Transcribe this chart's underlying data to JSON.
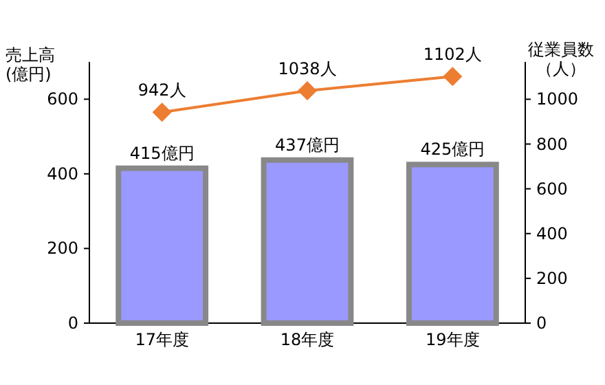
{
  "chart_data": {
    "type": "bar",
    "categories": [
      "17年度",
      "18年度",
      "19年度"
    ],
    "ylabel": "売上高(億円)",
    "y2label": "従業員数（人）",
    "ylim": [
      0,
      700
    ],
    "yticks": [
      0,
      200,
      400,
      600
    ],
    "y2lim": [
      0,
      1167
    ],
    "y2ticks": [
      0,
      200,
      400,
      600,
      800,
      1000
    ],
    "grid": false,
    "series": [
      {
        "color": "#9999ff",
        "values": [
          415,
          437,
          425
        ],
        "value_labels": [
          "415億円",
          "437億円",
          "425億円"
        ]
      },
      {
        "type": "line",
        "axis": "y2",
        "color": "#ed7d31",
        "marker": "diamond",
        "values": [
          942,
          1038,
          1102
        ],
        "value_labels": [
          "942人",
          "1038人",
          "1102人"
        ]
      }
    ]
  }
}
